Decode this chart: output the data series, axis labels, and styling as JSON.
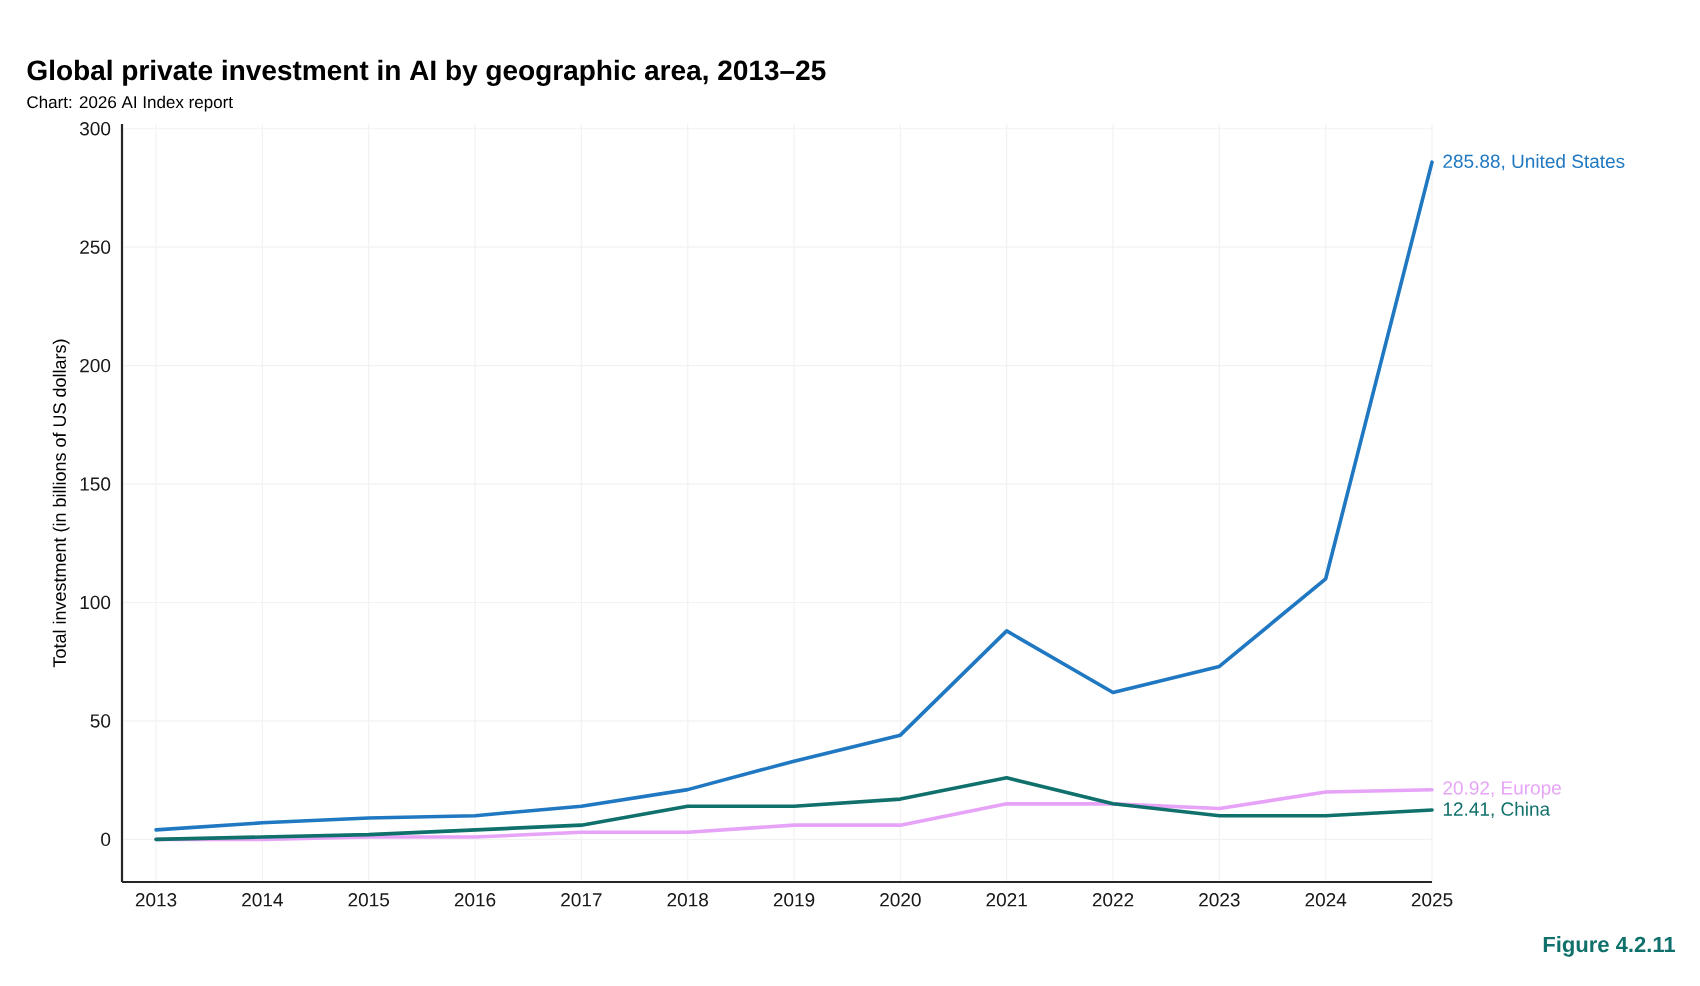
{
  "chart_data": {
    "type": "line",
    "title": "Global private investment in AI by geographic area, 2013–25",
    "subtitle": "Chart: 2026 AI Index report",
    "ylabel": "Total investment (in billions of US dollars)",
    "annotations": [
      "Figure 4.2.11"
    ],
    "x": [
      2013,
      2014,
      2015,
      2016,
      2017,
      2018,
      2019,
      2020,
      2021,
      2022,
      2023,
      2024,
      2025
    ],
    "series": [
      {
        "color": "#1f78c1",
        "values": [
          4,
          7,
          9,
          10,
          14,
          21,
          33,
          44,
          88,
          62,
          73,
          110,
          285.88
        ],
        "value_labels": [
          null,
          null,
          null,
          null,
          null,
          null,
          null,
          null,
          null,
          null,
          null,
          null,
          "285.88, United States"
        ]
      },
      {
        "color": "#e6a3f7",
        "values": [
          0,
          0,
          1,
          1,
          3,
          3,
          6,
          6,
          15,
          15,
          13,
          20,
          20.92
        ],
        "value_labels": [
          null,
          null,
          null,
          null,
          null,
          null,
          null,
          null,
          null,
          null,
          null,
          null,
          "20.92, Europe"
        ]
      },
      {
        "color": "#10706b",
        "values": [
          0,
          1,
          2,
          4,
          6,
          14,
          14,
          17,
          26,
          15,
          10,
          10,
          12.41
        ],
        "value_labels": [
          null,
          null,
          null,
          null,
          null,
          null,
          null,
          null,
          null,
          null,
          null,
          null,
          "12.41, China"
        ]
      }
    ],
    "xlim": [
      2012.68,
      2025
    ],
    "ylim": [
      -18,
      302
    ],
    "xticks": [
      2013,
      2014,
      2015,
      2016,
      2017,
      2018,
      2019,
      2020,
      2021,
      2022,
      2023,
      2024,
      2025
    ],
    "yticks": [
      0,
      50,
      100,
      150,
      200,
      250,
      300
    ],
    "grid": true,
    "marker": "none",
    "line_style": "solid"
  }
}
